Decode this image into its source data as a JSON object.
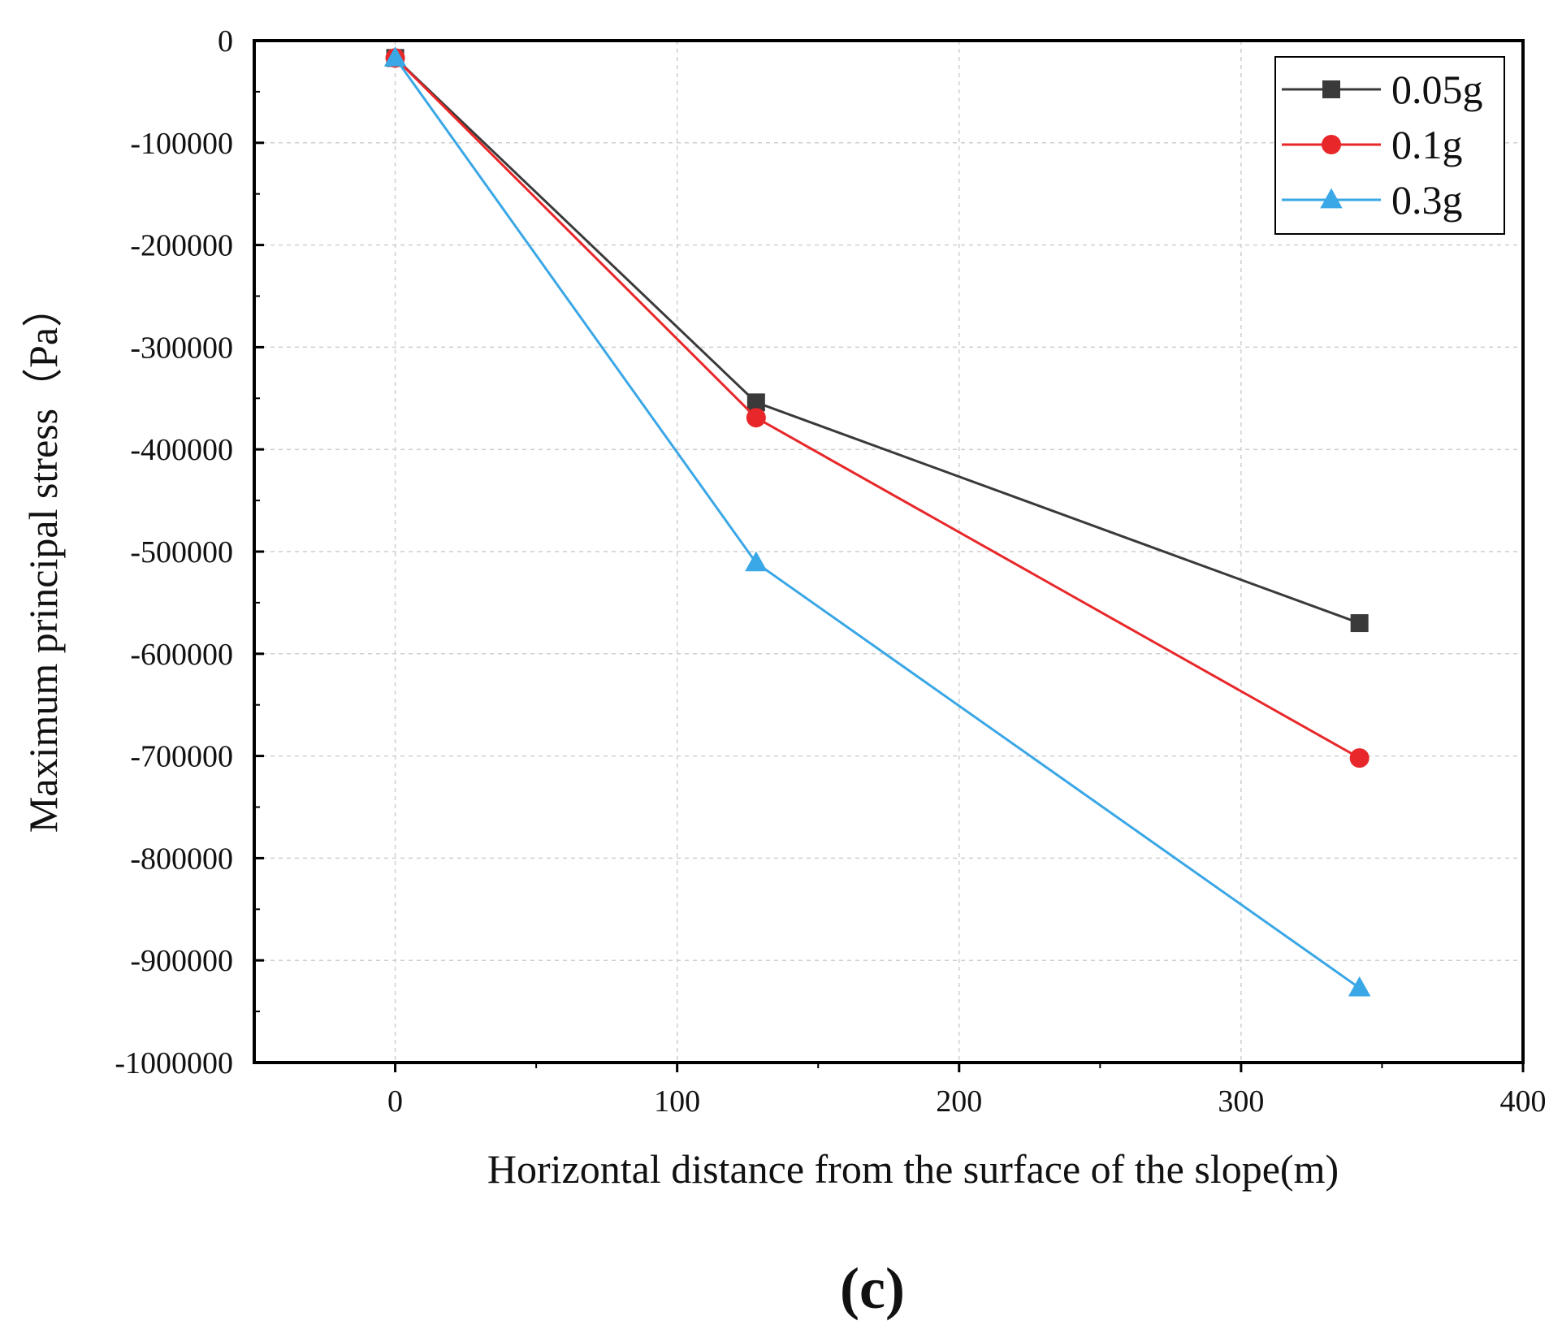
{
  "chart_data": {
    "type": "line",
    "title": "",
    "xlabel": "Horizontal distance from the surface of the slope(m)",
    "ylabel": "Maximum principal stress（Pa）",
    "xlim": [
      -50,
      400
    ],
    "ylim": [
      -1000000,
      0
    ],
    "xticks": [
      0,
      100,
      200,
      300,
      400
    ],
    "yticks": [
      0,
      -100000,
      -200000,
      -300000,
      -400000,
      -500000,
      -600000,
      -700000,
      -800000,
      -900000,
      -1000000
    ],
    "grid": true,
    "legend_position": "top-right",
    "x": [
      0,
      128,
      342
    ],
    "series": [
      {
        "name": "0.05g",
        "color": "#3a3a3a",
        "marker": "square",
        "values": [
          -17000,
          -354000,
          -570000
        ]
      },
      {
        "name": "0.1g",
        "color": "#e8272a",
        "marker": "circle",
        "values": [
          -17000,
          -369000,
          -702000
        ]
      },
      {
        "name": "0.3g",
        "color": "#3aa7e6",
        "marker": "triangle",
        "values": [
          -17000,
          -511000,
          -927000
        ]
      }
    ],
    "caption": "(c)"
  }
}
